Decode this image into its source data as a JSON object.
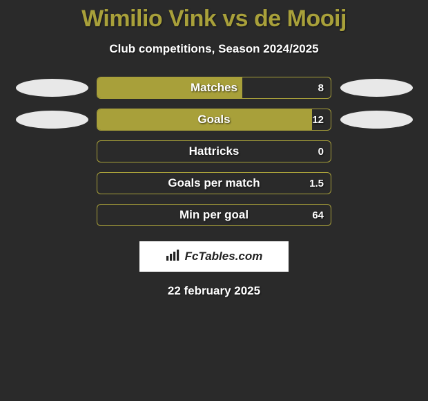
{
  "title": {
    "text": "Wimilio Vink vs de Mooij",
    "color": "#a8a03a",
    "fontsize": 34
  },
  "subtitle": "Club competitions, Season 2024/2025",
  "stats": {
    "bar_border_color": "#a8a03a",
    "bar_fill_color": "#a8a03a",
    "bar_bg_color": "transparent",
    "text_color": "#ffffff",
    "rows": [
      {
        "label": "Matches",
        "value": "8",
        "fill_pct": 62,
        "left_ellipse": true,
        "right_ellipse": true
      },
      {
        "label": "Goals",
        "value": "12",
        "fill_pct": 92,
        "left_ellipse": true,
        "right_ellipse": true
      },
      {
        "label": "Hattricks",
        "value": "0",
        "fill_pct": 0,
        "left_ellipse": false,
        "right_ellipse": false
      },
      {
        "label": "Goals per match",
        "value": "1.5",
        "fill_pct": 0,
        "left_ellipse": false,
        "right_ellipse": false
      },
      {
        "label": "Min per goal",
        "value": "64",
        "fill_pct": 0,
        "left_ellipse": false,
        "right_ellipse": false
      }
    ]
  },
  "logo": {
    "text": "FcTables.com",
    "icon_name": "bar-chart-icon",
    "box_bg": "#ffffff",
    "text_color": "#222222"
  },
  "date": "22 february 2025",
  "background_color": "#2a2a2a",
  "ellipse_color": "#e8e8e8"
}
